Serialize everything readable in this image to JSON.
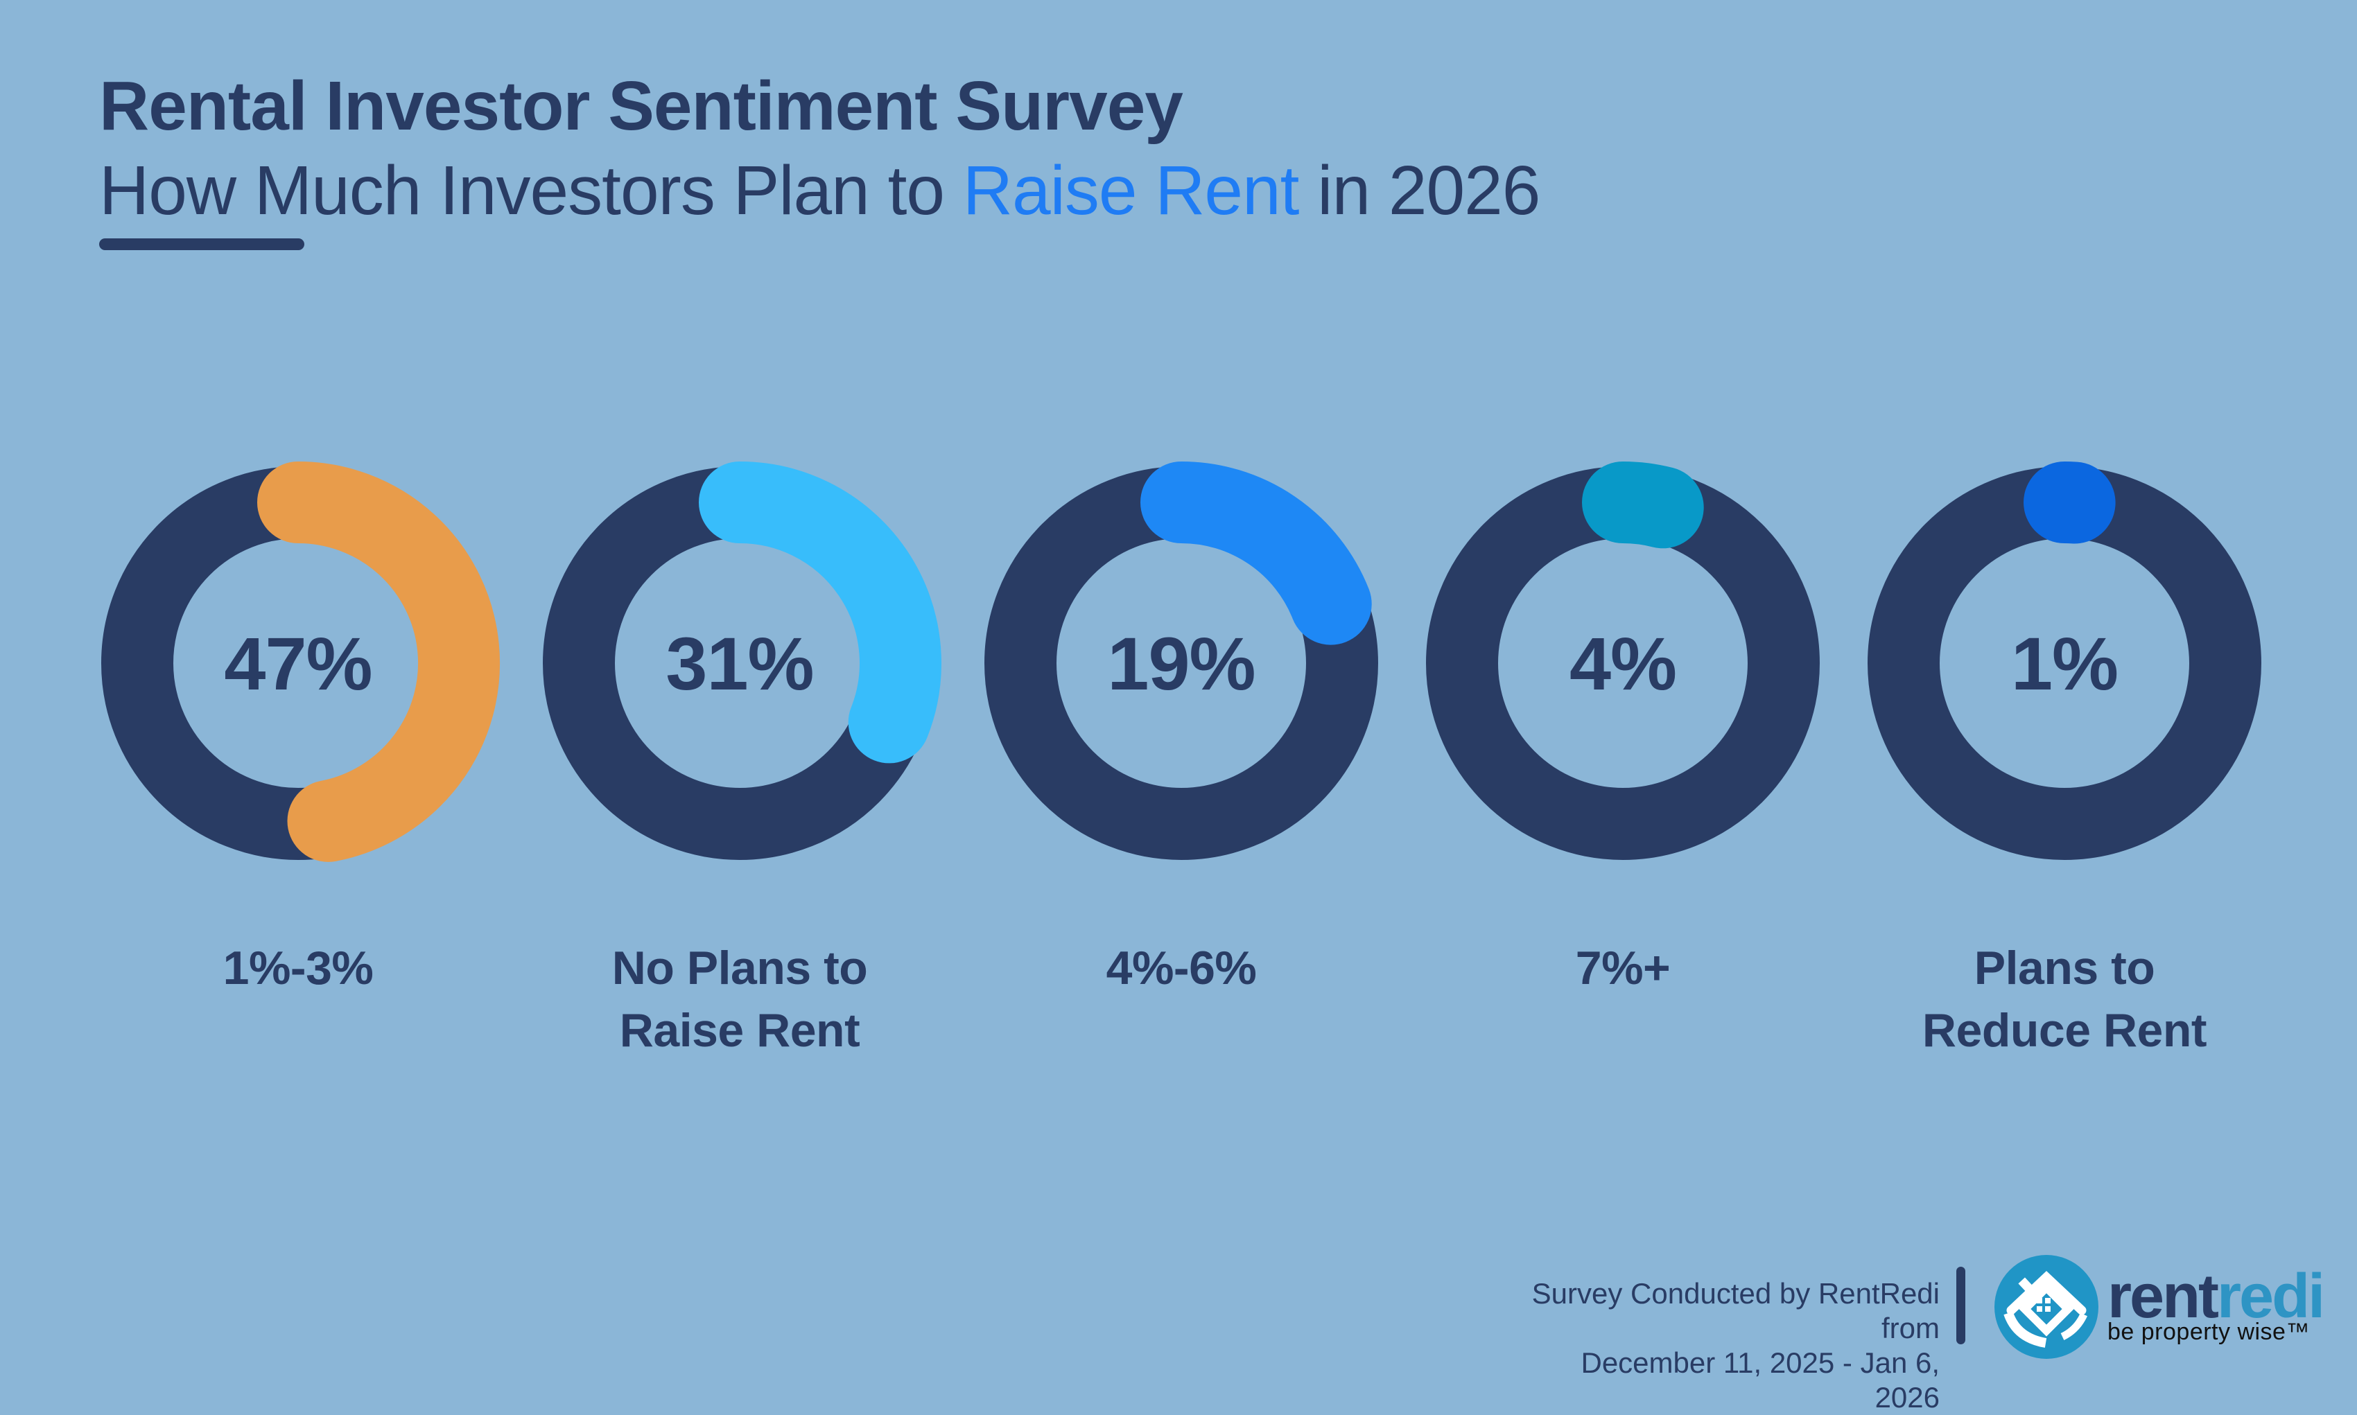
{
  "header": {
    "title": "Rental Investor Sentiment Survey",
    "subtitle_prefix": "How Much Investors Plan to ",
    "subtitle_highlight": "Raise Rent",
    "subtitle_suffix": " in 2026"
  },
  "chart_data": {
    "type": "pie",
    "variant": "donut-small-multiples",
    "title": "Rental Investor Sentiment Survey — How Much Investors Plan to Raise Rent in 2026",
    "unit": "%",
    "categories": [
      "1%-3%",
      "No Plans to Raise Rent",
      "4%-6%",
      "7%+",
      "Plans to Reduce Rent"
    ],
    "values": [
      47,
      31,
      19,
      4,
      1
    ],
    "start_angle_deg": 0,
    "direction": "clockwise",
    "track_color": "#293c64",
    "donuts": [
      {
        "value": 47,
        "value_label": "47%",
        "fraction": 0.47,
        "arc_color": "#e89c4b",
        "label_lines": [
          "1%-3%"
        ]
      },
      {
        "value": 31,
        "value_label": "31%",
        "fraction": 0.31,
        "arc_color": "#38bdfb",
        "label_lines": [
          "No Plans to",
          "Raise Rent"
        ]
      },
      {
        "value": 19,
        "value_label": "19%",
        "fraction": 0.19,
        "arc_color": "#1e88f5",
        "label_lines": [
          "4%-6%"
        ]
      },
      {
        "value": 4,
        "value_label": "4%",
        "fraction": 0.04,
        "arc_color": "#0899c8",
        "label_lines": [
          "7%+"
        ]
      },
      {
        "value": 1,
        "value_label": "1%",
        "fraction": 0.01,
        "arc_color": "#0b67e0",
        "label_lines": [
          "Plans to",
          "Reduce Rent"
        ]
      }
    ]
  },
  "footer": {
    "note_line1": "Survey Conducted by RentRedi from",
    "note_line2": "December 11, 2025 - Jan 6, 2026",
    "logo_text_primary": "rent",
    "logo_text_secondary": "redi",
    "logo_tagline": "be property wise™"
  },
  "colors": {
    "background": "#8bb6d7",
    "navy": "#293c64",
    "highlight_blue": "#1f7cf4",
    "logo_teal": "#2095c6",
    "logo_redi_blue": "#2e94c4",
    "tagline_black": "#111111"
  }
}
